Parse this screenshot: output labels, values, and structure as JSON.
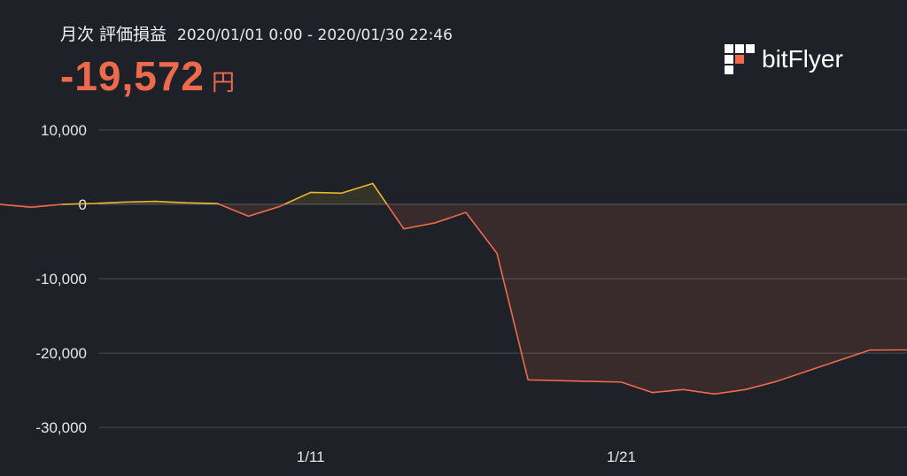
{
  "header": {
    "period_label": "月次 評価損益",
    "period_range": "2020/01/01 0:00 - 2020/01/30 22:46",
    "amount": "-19,572",
    "unit": "円"
  },
  "brand": {
    "name": "bitFlyer",
    "logo_icon": "bitflyer-logo-icon"
  },
  "colors": {
    "background": "#1e2128",
    "negative": "#ee6a4c",
    "positive": "#e8b830",
    "grid": "#4a4d55"
  },
  "chart_data": {
    "type": "area",
    "title": "",
    "xlabel": "",
    "ylabel": "",
    "x_ticks": [
      {
        "x": 11,
        "label": "1/11"
      },
      {
        "x": 21,
        "label": "1/21"
      }
    ],
    "y_ticks": [
      {
        "v": 10000,
        "label": "10,000"
      },
      {
        "v": 0,
        "label": "0"
      },
      {
        "v": -10000,
        "label": "-10,000"
      },
      {
        "v": -20000,
        "label": "-20,000"
      },
      {
        "v": -30000,
        "label": "-30,000"
      }
    ],
    "xlim": [
      1,
      30.2
    ],
    "ylim": [
      -32000,
      12000
    ],
    "grid": true,
    "x": [
      1,
      2,
      3,
      4,
      5,
      6,
      7,
      8,
      9,
      10,
      11,
      12,
      13,
      14,
      15,
      16,
      17,
      18,
      19,
      20,
      21,
      22,
      23,
      24,
      25,
      26,
      27,
      28,
      29,
      30,
      30.2
    ],
    "y": [
      0,
      -400,
      0,
      100,
      300,
      400,
      200,
      100,
      -1600,
      -300,
      1600,
      1500,
      2800,
      -3300,
      -2500,
      -1100,
      -6600,
      -23600,
      -23700,
      -23800,
      -23900,
      -25300,
      -24900,
      -25500,
      -24900,
      -23800,
      -22400,
      -21000,
      -19600,
      -19572,
      -19572
    ]
  }
}
